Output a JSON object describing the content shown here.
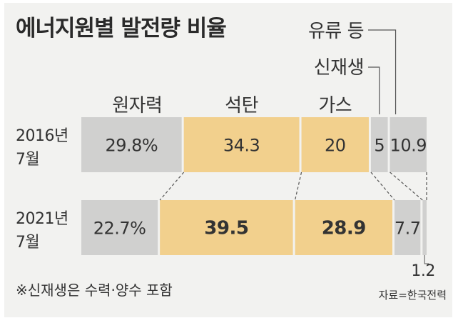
{
  "title": "에너지원별 발전량 비율",
  "footnote": "※신재생은 수력·양수 포함",
  "source": "자료=한국전력",
  "colors": {
    "gray": "#d0d0cf",
    "yellow": "#f2d08d",
    "panel": "#f2f2f0",
    "line": "#555555"
  },
  "chart_data": {
    "type": "bar",
    "orientation": "horizontal-stacked-100",
    "categories": [
      "원자력",
      "석탄",
      "가스",
      "신재생",
      "유류 등"
    ],
    "rows": [
      {
        "label_year": "2016년",
        "label_month": "7월",
        "values": [
          29.8,
          34.3,
          20,
          5,
          10.9
        ],
        "labels": [
          "29.8%",
          "34.3",
          "20",
          "5",
          "10.9"
        ]
      },
      {
        "label_year": "2021년",
        "label_month": "7월",
        "values": [
          22.7,
          39.5,
          28.9,
          7.7,
          1.2
        ],
        "labels": [
          "22.7%",
          "39.5",
          "28.9",
          "7.7",
          "1.2"
        ]
      }
    ],
    "segment_colors": [
      "gray",
      "yellow",
      "yellow",
      "gray",
      "gray"
    ],
    "bold_row": 1,
    "bold_segments": [
      1,
      2
    ]
  }
}
